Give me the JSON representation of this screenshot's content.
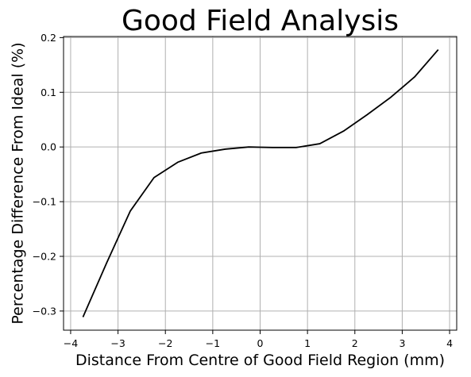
{
  "chart_data": {
    "type": "line",
    "title": "Good Field Analysis",
    "xlabel": "Distance From Centre of Good Field Region (mm)",
    "ylabel": "Percentage Difference From Ideal (%)",
    "xlim": [
      -4.15,
      4.15
    ],
    "ylim": [
      -0.335,
      0.202
    ],
    "xticks": [
      -4,
      -3,
      -2,
      -1,
      0,
      1,
      2,
      3,
      4
    ],
    "xtick_labels": [
      "−4",
      "−3",
      "−2",
      "−1",
      "0",
      "1",
      "2",
      "3",
      "4"
    ],
    "yticks": [
      -0.3,
      -0.2,
      -0.1,
      0.0,
      0.1,
      0.2
    ],
    "ytick_labels": [
      "−0.3",
      "−0.2",
      "−0.1",
      "0.0",
      "0.1",
      "0.2"
    ],
    "grid": true,
    "series": [
      {
        "color": "#000000",
        "x": [
          -3.74,
          -3.24,
          -2.74,
          -2.24,
          -1.74,
          -1.24,
          -0.74,
          -0.24,
          0.26,
          0.76,
          1.26,
          1.76,
          2.26,
          2.76,
          3.26,
          3.76
        ],
        "y": [
          -0.311,
          -0.212,
          -0.117,
          -0.056,
          -0.028,
          -0.011,
          -0.004,
          0.0,
          -0.001,
          -0.001,
          0.006,
          0.029,
          0.059,
          0.091,
          0.128,
          0.178
        ]
      }
    ]
  }
}
